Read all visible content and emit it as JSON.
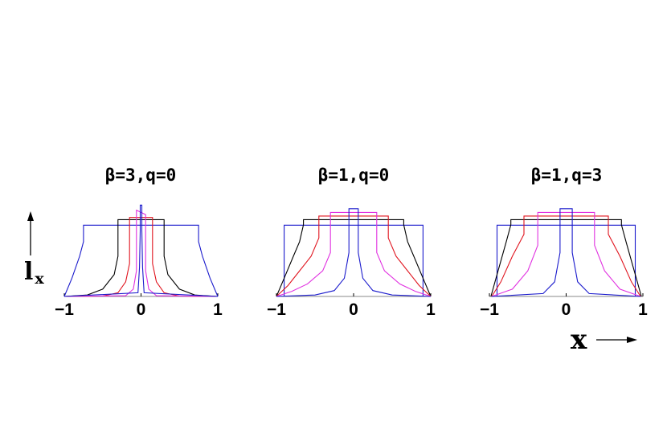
{
  "chart_data": [
    {
      "type": "line",
      "title": "β=3,q=0",
      "xlim": [
        -1,
        1
      ],
      "x_ticks": [
        -1,
        0,
        1
      ],
      "series": [
        {
          "color": "#1a1acc",
          "x": [
            -1.0,
            -0.9,
            -0.8,
            -0.75,
            -0.75,
            0.0,
            0.0,
            0.75,
            0.75,
            0.8,
            0.9,
            1.0
          ],
          "y": [
            0,
            0.25,
            0.55,
            0.75,
            0.975,
            0.975,
            0.975,
            0.975,
            0.75,
            0.55,
            0.25,
            0
          ]
        },
        {
          "color": "#000000",
          "x": [
            -1.0,
            -0.7,
            -0.5,
            -0.35,
            -0.3,
            -0.3,
            0.3,
            0.3,
            0.35,
            0.5,
            0.7,
            1.0
          ],
          "y": [
            0,
            0.02,
            0.1,
            0.3,
            0.55,
            1.05,
            1.05,
            0.55,
            0.3,
            0.1,
            0.02,
            0
          ]
        },
        {
          "color": "#e0141e",
          "x": [
            -1.0,
            -0.5,
            -0.3,
            -0.2,
            -0.15,
            -0.15,
            0.15,
            0.15,
            0.2,
            0.3,
            0.5,
            1.0
          ],
          "y": [
            0,
            0.005,
            0.05,
            0.2,
            0.45,
            1.08,
            1.08,
            0.45,
            0.2,
            0.05,
            0.005,
            0
          ]
        },
        {
          "color": "#e030e0",
          "x": [
            -1.0,
            -0.2,
            -0.1,
            -0.06,
            -0.06,
            0.06,
            0.06,
            0.1,
            0.2,
            1.0
          ],
          "y": [
            0,
            0.01,
            0.1,
            0.35,
            1.18,
            1.12,
            0.35,
            0.1,
            0.01,
            0
          ]
        },
        {
          "color": "#1a1acc",
          "x": [
            -1.0,
            -0.04,
            -0.02,
            -0.01,
            -0.01,
            0.01,
            0.01,
            0.02,
            0.04,
            1.0
          ],
          "y": [
            0,
            0.05,
            0.4,
            0.9,
            1.25,
            1.25,
            0.9,
            0.4,
            0.05,
            0
          ]
        }
      ]
    },
    {
      "type": "line",
      "title": "β=1,q=0",
      "xlim": [
        -1,
        1
      ],
      "x_ticks": [
        -1,
        0,
        1
      ],
      "series": [
        {
          "color": "#1a1acc",
          "x": [
            -0.9,
            -0.9,
            0.9,
            0.9
          ],
          "y": [
            0,
            0.975,
            0.975,
            0
          ]
        },
        {
          "color": "#000000",
          "x": [
            -1.0,
            -0.9,
            -0.78,
            -0.7,
            -0.65,
            -0.65,
            0.65,
            0.65,
            0.7,
            0.78,
            0.9,
            1.0
          ],
          "y": [
            0,
            0.25,
            0.55,
            0.75,
            0.98,
            1.05,
            1.05,
            0.98,
            0.75,
            0.55,
            0.25,
            0
          ]
        },
        {
          "color": "#e0141e",
          "x": [
            -1.0,
            -0.85,
            -0.7,
            -0.55,
            -0.45,
            -0.45,
            0.45,
            0.45,
            0.55,
            0.7,
            0.85,
            1.0
          ],
          "y": [
            0,
            0.15,
            0.35,
            0.55,
            0.8,
            1.1,
            1.1,
            0.8,
            0.55,
            0.35,
            0.15,
            0
          ]
        },
        {
          "color": "#e030e0",
          "x": [
            -1.0,
            -0.8,
            -0.6,
            -0.4,
            -0.3,
            -0.3,
            0.3,
            0.3,
            0.4,
            0.6,
            0.8,
            1.0
          ],
          "y": [
            0,
            0.07,
            0.17,
            0.35,
            0.6,
            1.15,
            1.15,
            0.6,
            0.35,
            0.17,
            0.07,
            0
          ]
        },
        {
          "color": "#1a1acc",
          "x": [
            -1.0,
            -0.5,
            -0.25,
            -0.12,
            -0.06,
            -0.06,
            0.06,
            0.06,
            0.12,
            0.25,
            0.5,
            1.0
          ],
          "y": [
            0,
            0.02,
            0.08,
            0.25,
            0.6,
            1.2,
            1.2,
            0.6,
            0.25,
            0.08,
            0.02,
            0
          ]
        }
      ]
    },
    {
      "type": "line",
      "title": "β=1,q=3",
      "xlim": [
        -1,
        1
      ],
      "x_ticks": [
        -1,
        0,
        1
      ],
      "series": [
        {
          "color": "#1a1acc",
          "x": [
            -0.9,
            -0.9,
            0.9,
            0.9
          ],
          "y": [
            0,
            0.975,
            0.975,
            0
          ]
        },
        {
          "color": "#000000",
          "x": [
            -0.98,
            -0.9,
            -0.78,
            -0.72,
            -0.72,
            0.72,
            0.72,
            0.78,
            0.9,
            0.98
          ],
          "y": [
            0,
            0.3,
            0.75,
            0.98,
            1.05,
            1.05,
            0.98,
            0.75,
            0.3,
            0
          ]
        },
        {
          "color": "#e0141e",
          "x": [
            -0.97,
            -0.85,
            -0.7,
            -0.55,
            -0.55,
            0.55,
            0.55,
            0.7,
            0.85,
            0.97
          ],
          "y": [
            0,
            0.2,
            0.55,
            0.85,
            1.1,
            1.1,
            0.85,
            0.55,
            0.2,
            0
          ]
        },
        {
          "color": "#e030e0",
          "x": [
            -0.97,
            -0.7,
            -0.5,
            -0.37,
            -0.37,
            0.37,
            0.37,
            0.5,
            0.7,
            0.97
          ],
          "y": [
            0,
            0.1,
            0.35,
            0.7,
            1.15,
            1.15,
            0.7,
            0.35,
            0.1,
            0
          ]
        },
        {
          "color": "#1a1acc",
          "x": [
            -0.97,
            -0.3,
            -0.15,
            -0.08,
            -0.08,
            0.08,
            0.08,
            0.15,
            0.3,
            0.97
          ],
          "y": [
            0,
            0.04,
            0.2,
            0.6,
            1.2,
            1.2,
            0.6,
            0.2,
            0.04,
            0
          ]
        }
      ]
    }
  ],
  "axis_label_y": "l",
  "axis_label_y_sub": "x",
  "axis_label_x": "x"
}
